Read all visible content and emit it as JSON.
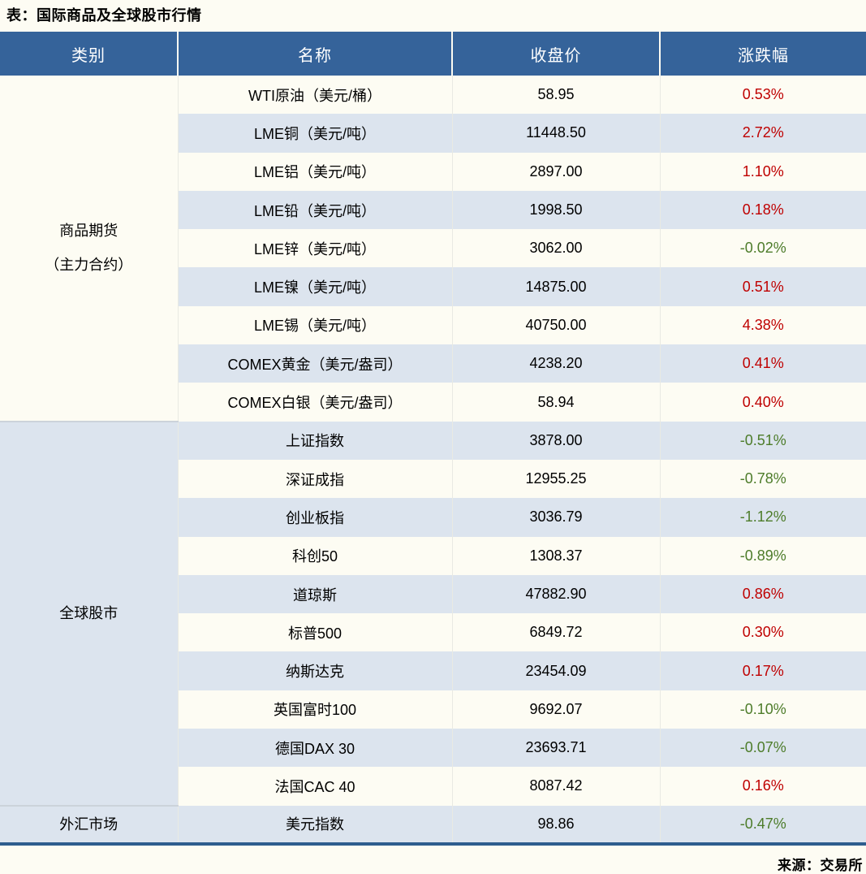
{
  "title": "表：国际商品及全球股市行情",
  "source": "来源：交易所",
  "colors": {
    "header_bg": "#35639a",
    "row_alt_bg": "#dce4ee",
    "up_red": "#bf0000",
    "down_green": "#4d7c2a",
    "bottom_rule": "#2e5d8e",
    "page_bg": "#fdfcf3"
  },
  "chart_data": {
    "type": "table",
    "title": "表：国际商品及全球股市行情",
    "columns": [
      "类别",
      "名称",
      "收盘价",
      "涨跌幅"
    ],
    "legend_note": "red = rise, green = fall (Chinese convention)",
    "groups": [
      {
        "category": "商品期货（主力合约）",
        "category_lines": [
          "商品期货",
          "（主力合约）"
        ],
        "rows": [
          {
            "name": "WTI原油（美元/桶）",
            "close": "58.95",
            "change": "0.53%"
          },
          {
            "name": "LME铜（美元/吨）",
            "close": "11448.50",
            "change": "2.72%"
          },
          {
            "name": "LME铝（美元/吨）",
            "close": "2897.00",
            "change": "1.10%"
          },
          {
            "name": "LME铅（美元/吨）",
            "close": "1998.50",
            "change": "0.18%"
          },
          {
            "name": "LME锌（美元/吨）",
            "close": "3062.00",
            "change": "-0.02%"
          },
          {
            "name": "LME镍（美元/吨）",
            "close": "14875.00",
            "change": "0.51%"
          },
          {
            "name": "LME锡（美元/吨）",
            "close": "40750.00",
            "change": "4.38%"
          },
          {
            "name": "COMEX黄金（美元/盎司）",
            "close": "4238.20",
            "change": "0.41%"
          },
          {
            "name": "COMEX白银（美元/盎司）",
            "close": "58.94",
            "change": "0.40%"
          }
        ]
      },
      {
        "category": "全球股市",
        "category_lines": [
          "全球股市"
        ],
        "rows": [
          {
            "name": "上证指数",
            "close": "3878.00",
            "change": "-0.51%"
          },
          {
            "name": "深证成指",
            "close": "12955.25",
            "change": "-0.78%"
          },
          {
            "name": "创业板指",
            "close": "3036.79",
            "change": "-1.12%"
          },
          {
            "name": "科创50",
            "close": "1308.37",
            "change": "-0.89%"
          },
          {
            "name": "道琼斯",
            "close": "47882.90",
            "change": "0.86%"
          },
          {
            "name": "标普500",
            "close": "6849.72",
            "change": "0.30%"
          },
          {
            "name": "纳斯达克",
            "close": "23454.09",
            "change": "0.17%"
          },
          {
            "name": "英国富时100",
            "close": "9692.07",
            "change": "-0.10%"
          },
          {
            "name": "德国DAX 30",
            "close": "23693.71",
            "change": "-0.07%"
          },
          {
            "name": "法国CAC 40",
            "close": "8087.42",
            "change": "0.16%"
          }
        ]
      },
      {
        "category": "外汇市场",
        "category_lines": [
          "外汇市场"
        ],
        "rows": [
          {
            "name": "美元指数",
            "close": "98.86",
            "change": "-0.47%"
          }
        ]
      }
    ],
    "source": "来源：交易所"
  }
}
